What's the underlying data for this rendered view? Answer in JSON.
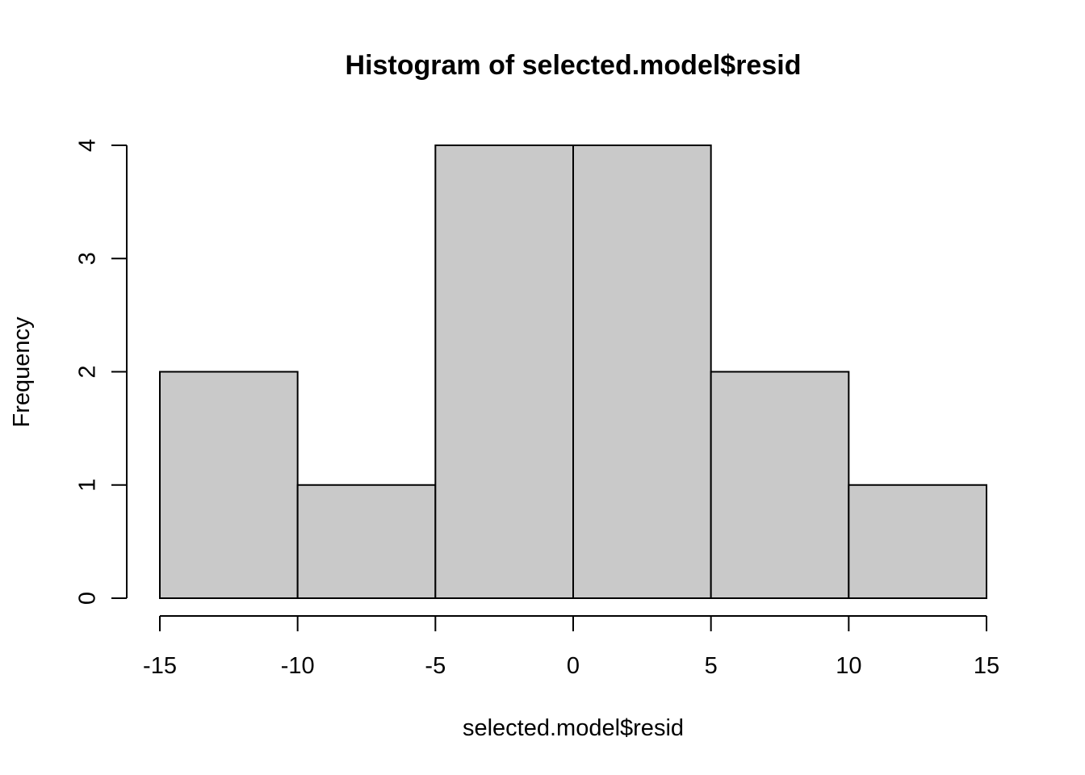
{
  "chart_data": {
    "type": "bar",
    "title": "Histogram of selected.model$resid",
    "xlabel": "selected.model$resid",
    "ylabel": "Frequency",
    "bins": [
      {
        "from": -15,
        "to": -10,
        "count": 2
      },
      {
        "from": -10,
        "to": -5,
        "count": 1
      },
      {
        "from": -5,
        "to": 0,
        "count": 4
      },
      {
        "from": 0,
        "to": 5,
        "count": 4
      },
      {
        "from": 5,
        "to": 10,
        "count": 2
      },
      {
        "from": 10,
        "to": 15,
        "count": 1
      }
    ],
    "xlim": [
      -15,
      15
    ],
    "ylim": [
      0,
      4
    ],
    "xticks": [
      -15,
      -10,
      -5,
      0,
      5,
      10,
      15
    ],
    "yticks": [
      0,
      1,
      2,
      3,
      4
    ],
    "grid": false,
    "bar_color": "#c9c9c9",
    "edge_color": "#000000"
  }
}
